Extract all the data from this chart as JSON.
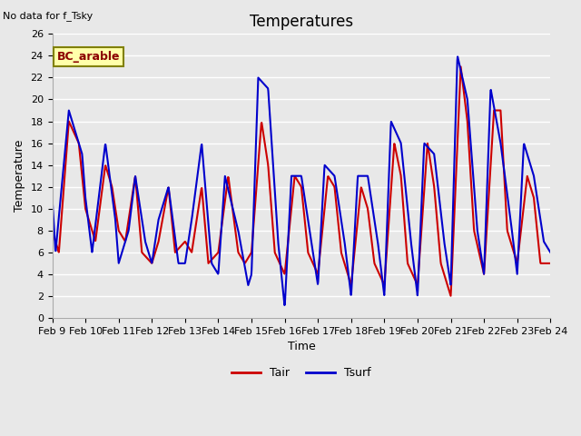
{
  "title": "Temperatures",
  "xlabel": "Time",
  "ylabel": "Temperature",
  "top_left_text": "No data for f_Tsky",
  "box_label": "BC_arable",
  "ylim": [
    0,
    26
  ],
  "yticks": [
    0,
    2,
    4,
    6,
    8,
    10,
    12,
    14,
    16,
    18,
    20,
    22,
    24,
    26
  ],
  "xtick_labels": [
    "Feb 9",
    "Feb 10",
    "Feb 11",
    "Feb 12",
    "Feb 13",
    "Feb 14",
    "Feb 15",
    "Feb 16",
    "Feb 17",
    "Feb 18",
    "Feb 19",
    "Feb 20",
    "Feb 21",
    "Feb 22",
    "Feb 23",
    "Feb 24"
  ],
  "tair_color": "#cc0000",
  "tsurf_color": "#0000cc",
  "line_width": 1.5,
  "plot_bg_color": "#e8e8e8",
  "fig_bg_color": "#e8e8e8",
  "legend_labels": [
    "Tair",
    "Tsurf"
  ],
  "title_fontsize": 12,
  "label_fontsize": 9,
  "tick_fontsize": 8,
  "n_days": 15,
  "points_per_day": 96,
  "tair_keypoints_x": [
    0,
    0.2,
    0.5,
    0.8,
    1.0,
    1.3,
    1.6,
    1.8,
    2.0,
    2.2,
    2.5,
    2.7,
    3.0,
    3.2,
    3.5,
    3.7,
    4.0,
    4.2,
    4.5,
    4.7,
    5.0,
    5.3,
    5.6,
    5.8,
    6.0,
    6.3,
    6.5,
    6.7,
    7.0,
    7.3,
    7.5,
    7.7,
    8.0,
    8.3,
    8.5,
    8.7,
    9.0,
    9.3,
    9.5,
    9.7,
    10.0,
    10.3,
    10.5,
    10.7,
    11.0,
    11.3,
    11.5,
    11.7,
    12.0,
    12.3,
    12.5,
    12.7,
    13.0,
    13.3,
    13.5,
    13.7,
    14.0,
    14.3,
    14.5,
    14.7,
    15.0
  ],
  "tair_keypoints_y": [
    8,
    6,
    18,
    16,
    10,
    7,
    14,
    12,
    8,
    7,
    13,
    6,
    5,
    7,
    12,
    6,
    7,
    6,
    12,
    5,
    6,
    13,
    6,
    5,
    6,
    18,
    14,
    6,
    4,
    13,
    12,
    6,
    4,
    13,
    12,
    6,
    3,
    12,
    10,
    5,
    3,
    16,
    13,
    5,
    3,
    16,
    12,
    5,
    2,
    23,
    18,
    8,
    4,
    19,
    19,
    8,
    5,
    13,
    11,
    5,
    5
  ],
  "tsurf_keypoints_x": [
    0,
    0.1,
    0.5,
    0.9,
    1.0,
    1.2,
    1.6,
    1.9,
    2.0,
    2.3,
    2.5,
    2.8,
    3.0,
    3.2,
    3.5,
    3.8,
    4.0,
    4.2,
    4.5,
    4.8,
    5.0,
    5.2,
    5.6,
    5.9,
    6.0,
    6.2,
    6.5,
    6.8,
    7.0,
    7.2,
    7.5,
    7.8,
    8.0,
    8.2,
    8.5,
    8.8,
    9.0,
    9.2,
    9.5,
    9.8,
    10.0,
    10.2,
    10.5,
    10.8,
    11.0,
    11.2,
    11.5,
    11.8,
    12.0,
    12.2,
    12.5,
    12.8,
    13.0,
    13.2,
    13.5,
    13.8,
    14.0,
    14.2,
    14.5,
    14.8,
    15.0
  ],
  "tsurf_keypoints_y": [
    11,
    6,
    19,
    15,
    11,
    6,
    16,
    9,
    5,
    8,
    13,
    7,
    5,
    9,
    12,
    5,
    5,
    9,
    16,
    5,
    4,
    13,
    8,
    3,
    4,
    22,
    21,
    7,
    1,
    13,
    13,
    7,
    3,
    14,
    13,
    7,
    2,
    13,
    13,
    7,
    2,
    18,
    16,
    7,
    2,
    16,
    15,
    7,
    3,
    24,
    20,
    8,
    4,
    21,
    16,
    9,
    4,
    16,
    13,
    7,
    6
  ]
}
